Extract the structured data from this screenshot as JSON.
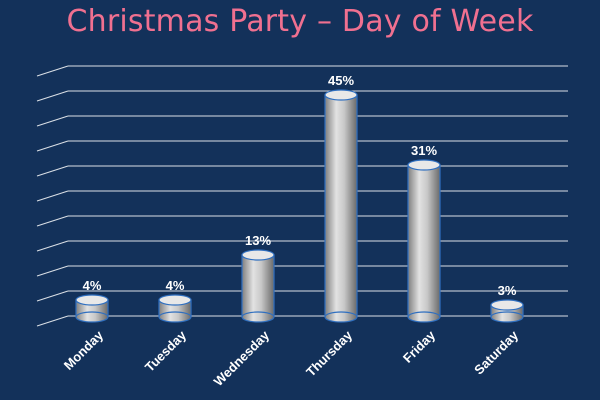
{
  "chart_data": {
    "type": "bar",
    "title": "Christmas Party – Day of Week",
    "categories": [
      "Monday",
      "Tuesday",
      "Wednesday",
      "Thursday",
      "Friday",
      "Saturday"
    ],
    "values": [
      4,
      4,
      13,
      45,
      31,
      3
    ],
    "value_labels": [
      "4%",
      "4%",
      "13%",
      "45%",
      "31%",
      "3%"
    ],
    "ylim": [
      0,
      50
    ],
    "grid": true,
    "legend": "none",
    "colors": {
      "background": "#13315a",
      "title": "#f07090",
      "bar": "#c4c4c4",
      "bar_top": "#e8e8e8",
      "bar_outline": "#2f6fc0",
      "gridline": "#ffffff",
      "label": "#ffffff"
    }
  }
}
